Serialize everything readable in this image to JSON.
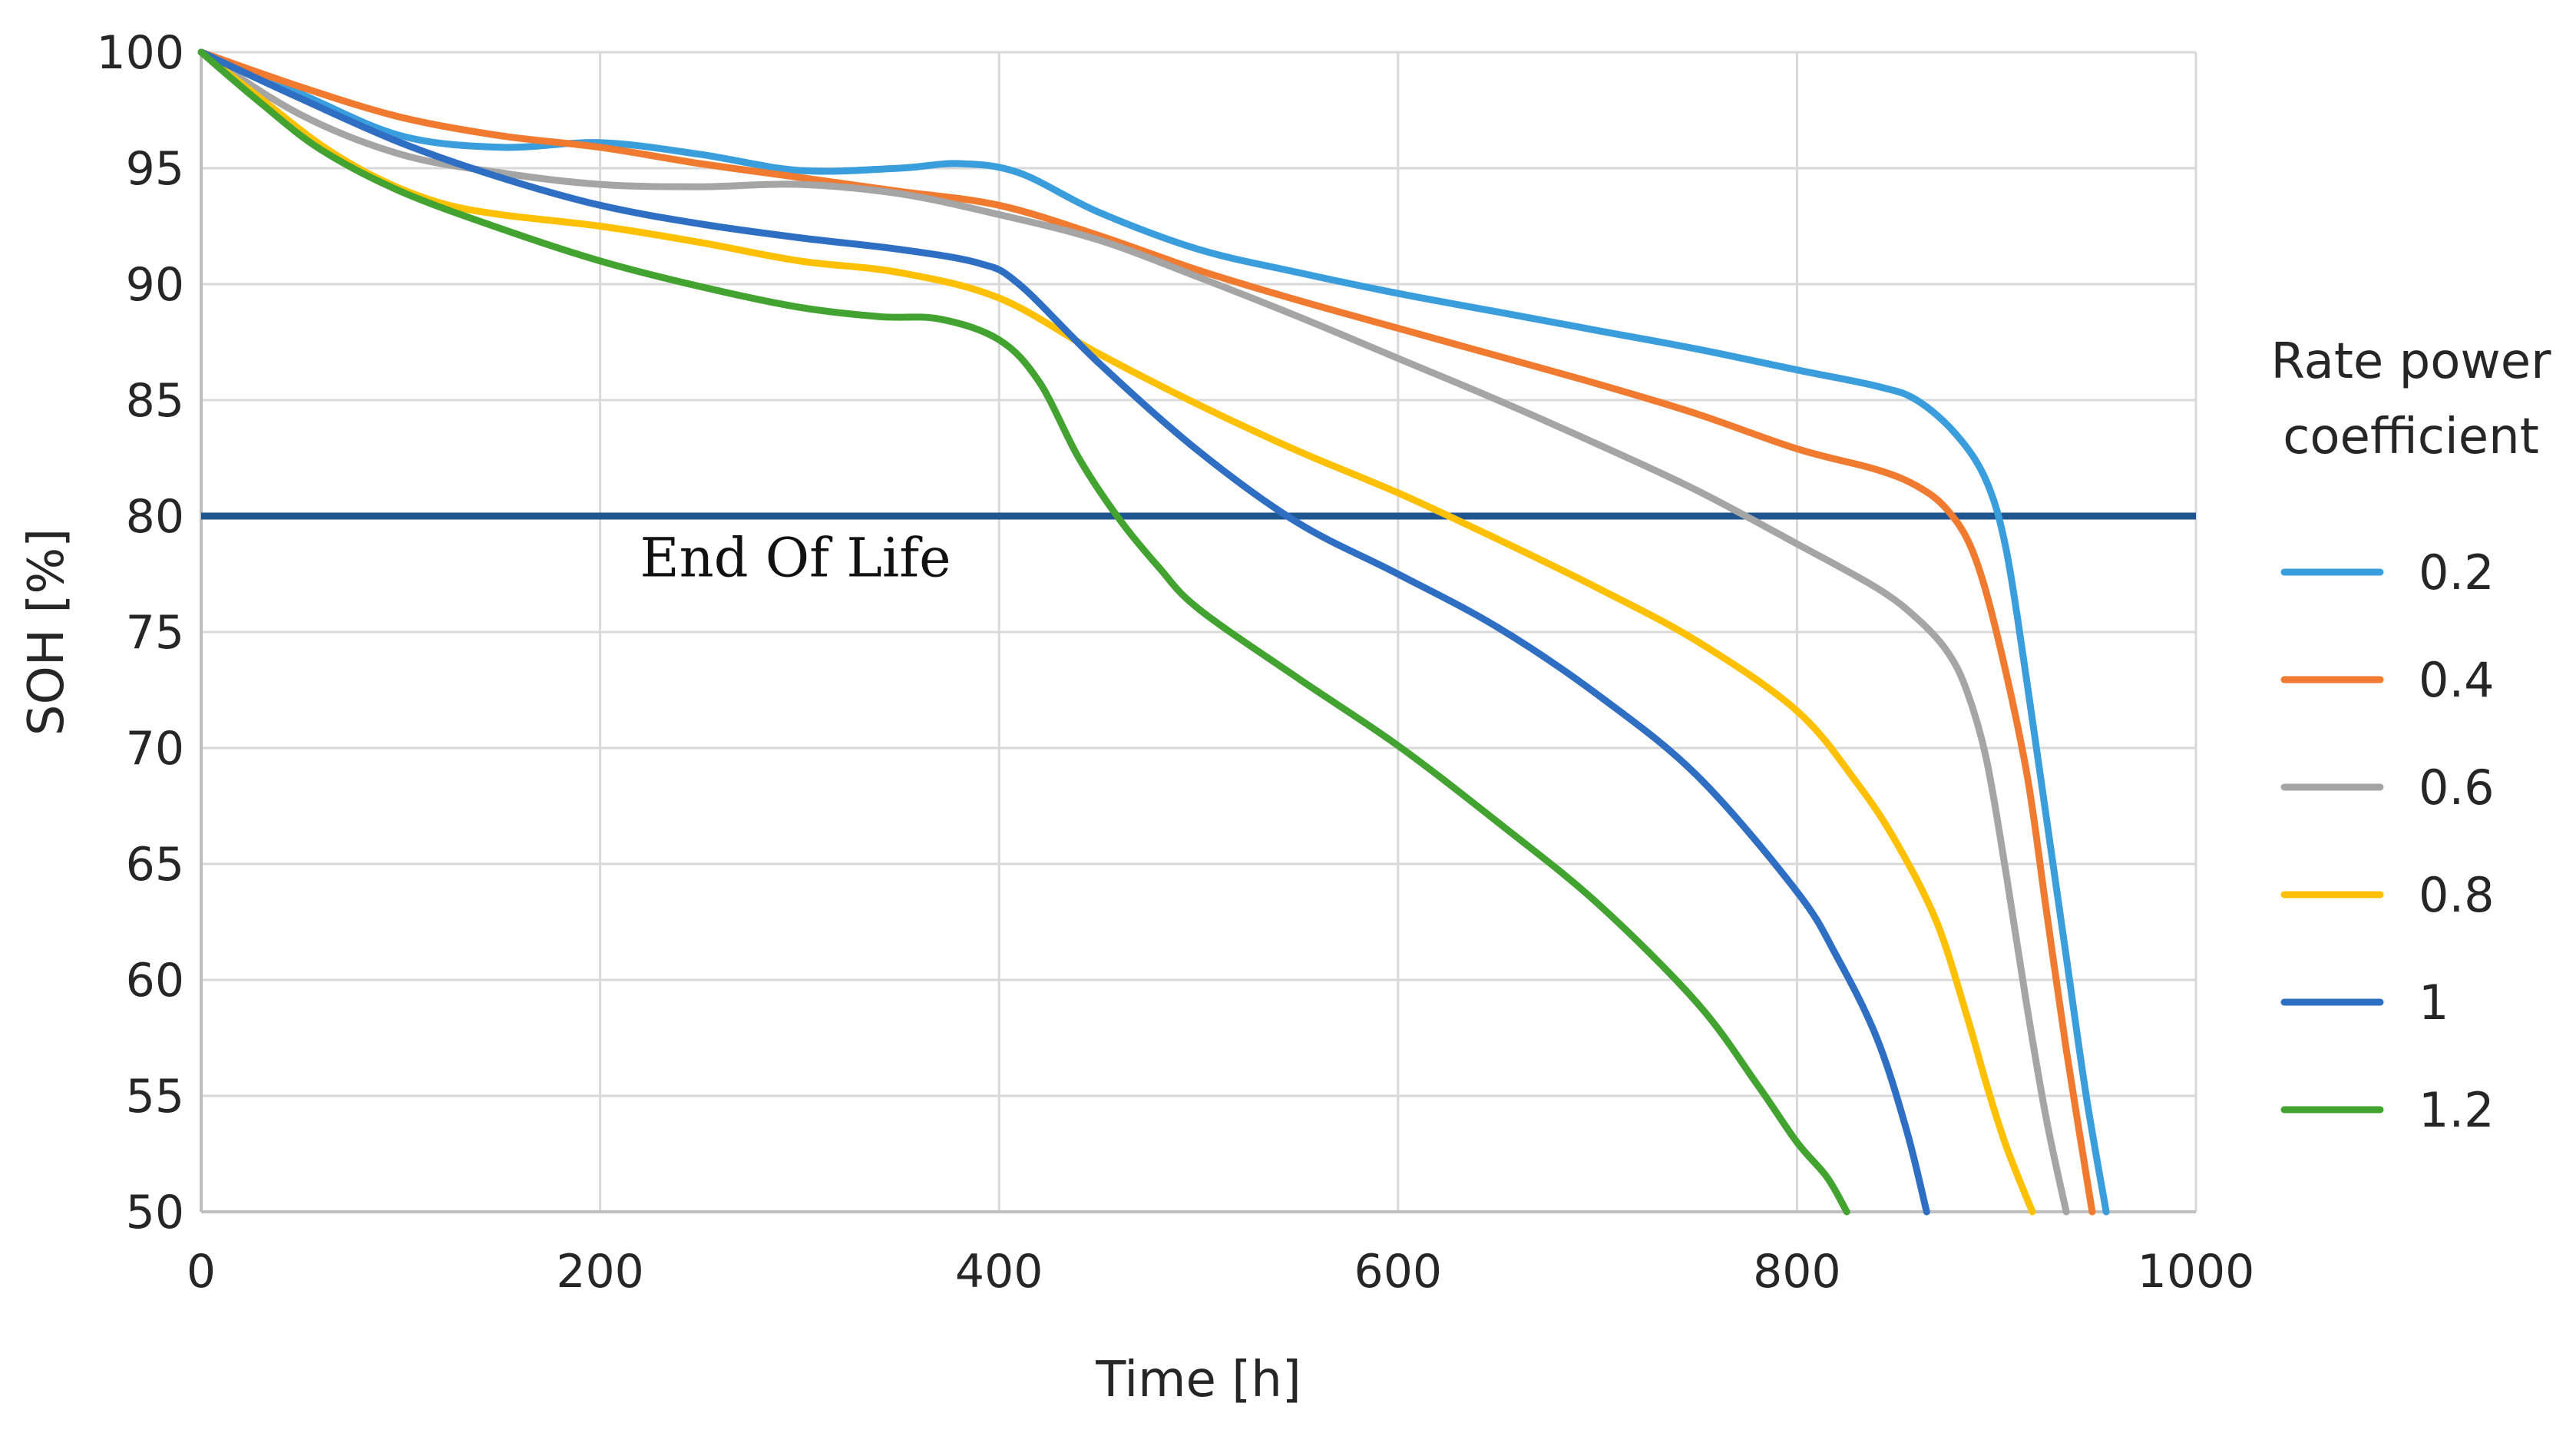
{
  "chart_data": {
    "type": "line",
    "title": "",
    "xlabel": "Time [h]",
    "ylabel": "SOH [%]",
    "xlim": [
      0,
      1000
    ],
    "ylim": [
      50,
      100
    ],
    "xticks": [
      0,
      200,
      400,
      600,
      800,
      1000
    ],
    "yticks": [
      50,
      55,
      60,
      65,
      70,
      75,
      80,
      85,
      90,
      95,
      100
    ],
    "grid": true,
    "legend": {
      "title_line1": "Rate power",
      "title_line2": "coefficient",
      "placement": "right"
    },
    "reference_line": {
      "y": 80,
      "label": "End Of Life",
      "color": "#1f5591",
      "label_x": 220,
      "label_y": 77.4
    },
    "series": [
      {
        "name": "0.2",
        "color": "#3a9edc",
        "x": [
          0,
          50,
          100,
          150,
          200,
          250,
          300,
          350,
          380,
          410,
          450,
          500,
          550,
          600,
          650,
          700,
          750,
          800,
          840,
          860,
          880,
          895,
          905,
          915,
          925,
          935,
          945,
          955
        ],
        "y": [
          100,
          98.2,
          96.4,
          95.9,
          96.1,
          95.6,
          94.9,
          95.0,
          95.2,
          94.8,
          93.1,
          91.5,
          90.5,
          89.6,
          88.8,
          88.0,
          87.2,
          86.3,
          85.6,
          85.0,
          83.5,
          81.5,
          78.5,
          73.0,
          67.0,
          61.0,
          55.0,
          50.0
        ]
      },
      {
        "name": "0.4",
        "color": "#f07a2f",
        "x": [
          0,
          50,
          100,
          150,
          200,
          250,
          300,
          350,
          400,
          450,
          500,
          550,
          600,
          650,
          700,
          750,
          800,
          840,
          860,
          875,
          888,
          900,
          915,
          925,
          935,
          948
        ],
        "y": [
          100,
          98.5,
          97.2,
          96.4,
          95.9,
          95.2,
          94.6,
          94.0,
          93.4,
          92.1,
          90.6,
          89.3,
          88.1,
          86.9,
          85.7,
          84.4,
          82.9,
          82.0,
          81.3,
          80.3,
          78.5,
          75.0,
          69.0,
          63.0,
          57.0,
          50.0
        ]
      },
      {
        "name": "0.6",
        "color": "#a5a5a5",
        "x": [
          0,
          50,
          100,
          150,
          200,
          250,
          300,
          350,
          400,
          450,
          500,
          550,
          600,
          650,
          700,
          750,
          800,
          840,
          860,
          875,
          885,
          895,
          905,
          915,
          925,
          935
        ],
        "y": [
          100,
          97.3,
          95.6,
          94.8,
          94.3,
          94.2,
          94.3,
          93.9,
          93.0,
          91.9,
          90.3,
          88.6,
          86.8,
          85.0,
          83.1,
          81.1,
          78.8,
          76.9,
          75.6,
          74.2,
          72.5,
          69.5,
          64.5,
          59.0,
          54.0,
          50.0
        ]
      },
      {
        "name": "0.8",
        "color": "#ffc000",
        "x": [
          0,
          30,
          60,
          90,
          120,
          150,
          200,
          250,
          300,
          350,
          400,
          450,
          500,
          550,
          600,
          650,
          700,
          750,
          800,
          830,
          850,
          870,
          885,
          895,
          905,
          918
        ],
        "y": [
          100,
          98.0,
          96.0,
          94.5,
          93.5,
          93.0,
          92.5,
          91.8,
          91.0,
          90.5,
          89.4,
          87.0,
          84.8,
          82.8,
          81.0,
          79.0,
          76.9,
          74.6,
          71.6,
          68.5,
          65.9,
          62.5,
          58.5,
          55.5,
          52.8,
          50.0
        ]
      },
      {
        "name": "1",
        "color": "#2e6fc4",
        "x": [
          0,
          50,
          100,
          150,
          200,
          250,
          300,
          350,
          390,
          410,
          450,
          500,
          550,
          600,
          650,
          700,
          750,
          800,
          820,
          840,
          855,
          865
        ],
        "y": [
          100,
          98.0,
          96.1,
          94.6,
          93.4,
          92.6,
          92.0,
          91.5,
          90.9,
          90.0,
          86.6,
          82.8,
          79.7,
          77.5,
          75.2,
          72.3,
          68.8,
          63.8,
          61.0,
          57.5,
          53.5,
          50.0
        ]
      },
      {
        "name": "1.2",
        "color": "#43a330",
        "x": [
          0,
          30,
          60,
          100,
          150,
          200,
          250,
          300,
          340,
          370,
          400,
          420,
          440,
          460,
          480,
          500,
          550,
          600,
          650,
          700,
          750,
          780,
          800,
          815,
          825
        ],
        "y": [
          100,
          97.8,
          95.8,
          94.0,
          92.4,
          91.0,
          89.9,
          89.0,
          88.6,
          88.5,
          87.6,
          85.8,
          82.5,
          79.9,
          77.8,
          76.0,
          73.0,
          70.1,
          66.8,
          63.3,
          59.0,
          55.5,
          53.0,
          51.5,
          50.0
        ]
      }
    ]
  }
}
